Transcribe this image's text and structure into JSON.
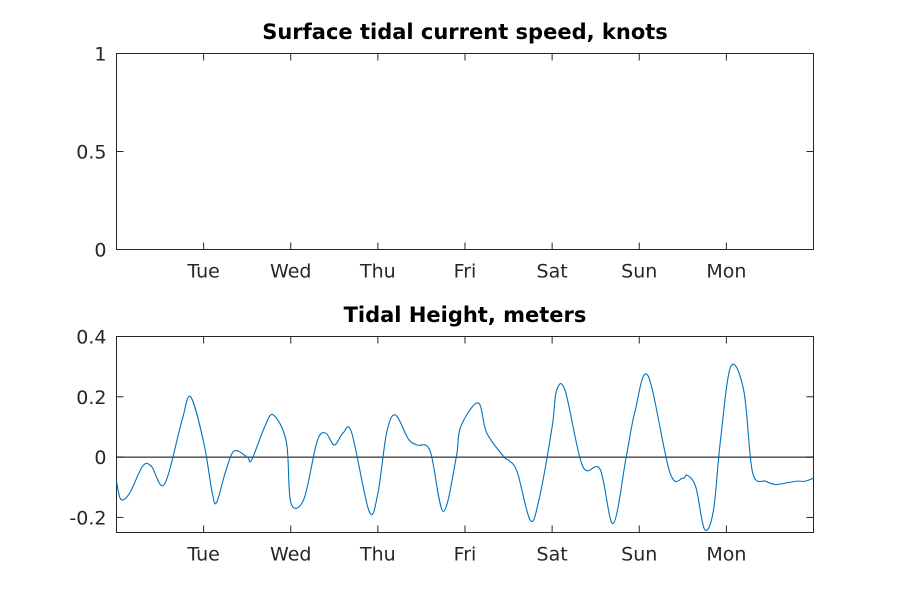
{
  "chart_data": [
    {
      "type": "line",
      "title": "Surface tidal current speed, knots",
      "xlabel": "",
      "ylabel": "",
      "xlim": [
        0,
        8
      ],
      "ylim": [
        0,
        1
      ],
      "x_ticks": [
        1,
        2,
        3,
        4,
        5,
        6,
        7
      ],
      "x_tick_labels": [
        "Tue",
        "Wed",
        "Thu",
        "Fri",
        "Sat",
        "Sun",
        "Mon"
      ],
      "y_ticks": [
        0,
        0.5,
        1
      ],
      "y_tick_labels": [
        "0",
        "0.5",
        "1"
      ],
      "series": [],
      "grid": false
    },
    {
      "type": "line",
      "title": "Tidal Height, meters",
      "xlabel": "",
      "ylabel": "",
      "xlim": [
        0,
        8
      ],
      "ylim": [
        -0.25,
        0.4
      ],
      "x_ticks": [
        1,
        2,
        3,
        4,
        5,
        6,
        7
      ],
      "x_tick_labels": [
        "Tue",
        "Wed",
        "Thu",
        "Fri",
        "Sat",
        "Sun",
        "Mon"
      ],
      "y_ticks": [
        -0.2,
        0,
        0.2,
        0.4
      ],
      "y_tick_labels": [
        "-0.2",
        "0",
        "0.2",
        "0.4"
      ],
      "reference_line_y": 0,
      "grid": false,
      "series": [
        {
          "color": "#0072BD",
          "x": [
            0,
            0.05,
            0.15,
            0.3,
            0.4,
            0.55,
            0.75,
            0.85,
            1.0,
            1.1,
            1.15,
            1.25,
            1.35,
            1.5,
            1.55,
            1.7,
            1.8,
            1.95,
            2.0,
            2.15,
            2.3,
            2.4,
            2.5,
            2.6,
            2.7,
            2.9,
            3.0,
            3.1,
            3.2,
            3.35,
            3.45,
            3.6,
            3.75,
            3.9,
            3.95,
            4.15,
            4.25,
            4.45,
            4.5,
            4.6,
            4.75,
            4.85,
            5.0,
            5.05,
            5.15,
            5.35,
            5.55,
            5.7,
            5.85,
            5.95,
            6.1,
            6.35,
            6.5,
            6.55,
            6.65,
            6.75,
            6.85,
            6.93,
            7.05,
            7.2,
            7.3,
            7.45,
            7.55,
            7.6,
            7.8,
            7.9,
            8.0
          ],
          "y": [
            -0.08,
            -0.14,
            -0.12,
            -0.03,
            -0.03,
            -0.09,
            0.12,
            0.2,
            0.05,
            -0.12,
            -0.15,
            -0.05,
            0.02,
            0.0,
            -0.01,
            0.1,
            0.14,
            0.05,
            -0.15,
            -0.14,
            0.05,
            0.08,
            0.04,
            0.08,
            0.08,
            -0.18,
            -0.12,
            0.08,
            0.14,
            0.06,
            0.04,
            0.02,
            -0.18,
            0.0,
            0.1,
            0.18,
            0.08,
            0.0,
            -0.01,
            -0.05,
            -0.21,
            -0.14,
            0.1,
            0.22,
            0.22,
            -0.03,
            -0.04,
            -0.22,
            0.0,
            0.15,
            0.27,
            -0.05,
            -0.07,
            -0.06,
            -0.1,
            -0.24,
            -0.18,
            0.05,
            0.3,
            0.22,
            -0.05,
            -0.08,
            -0.09,
            -0.09,
            -0.08,
            -0.08,
            -0.07
          ]
        }
      ]
    }
  ]
}
